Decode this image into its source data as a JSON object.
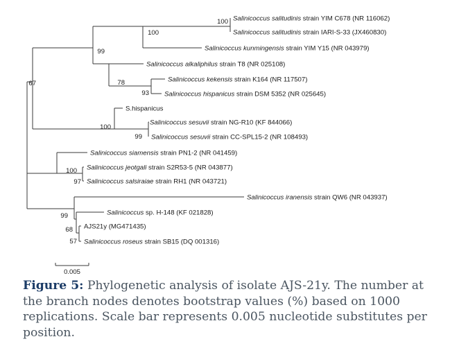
{
  "tree": {
    "leaves": [
      {
        "id": "L1",
        "italic": "Salinicoccus salitudinis",
        "rest": " strain YIM C678 (NR 116062)"
      },
      {
        "id": "L2",
        "italic": "Salinicoccus salitudinis",
        "rest": " strain IARI-S-33 (JX460830)"
      },
      {
        "id": "L3",
        "italic": "Salinicoccus kunmingensis",
        "rest": " strain YIM Y15 (NR 043979)"
      },
      {
        "id": "L4",
        "italic": "Salinicoccus alkaliphilus",
        "rest": " strain T8 (NR 025108)"
      },
      {
        "id": "L5",
        "italic": "Salinicoccus kekensis",
        "rest": " strain K164 (NR 117507)"
      },
      {
        "id": "L6",
        "italic": "Salinicoccus hispanicus",
        "rest": " strain DSM 5352  (NR 025645)"
      },
      {
        "id": "L7",
        "italic": "",
        "rest": "S.hispanicus"
      },
      {
        "id": "L8",
        "italic": "Salinicoccus sesuvii",
        "rest": " strain NG-R10 (KF 844066)"
      },
      {
        "id": "L9",
        "italic": "Salinicoccus sesuvii",
        "rest": " strain CC-SPL15-2 (NR 108493)"
      },
      {
        "id": "L10",
        "italic": "Salinicoccus siamensis",
        "rest": " strain PN1-2 (NR 041459)"
      },
      {
        "id": "L11",
        "italic": "Salinicoccus jeotgali",
        "rest": " strain S2R53-5 (NR 043877)"
      },
      {
        "id": "L12",
        "italic": "Salinicoccus salsiraiae",
        "rest": " strain RH1 (NR 043721)"
      },
      {
        "id": "L13",
        "italic": "Salinicoccus iranensis",
        "rest": " strain QW6 (NR 043937)"
      },
      {
        "id": "L14",
        "italic": "Salinicoccus",
        "rest": " sp. H-148 (KF 021828)"
      },
      {
        "id": "L15",
        "italic": "",
        "rest": "AJS21y (MG471435)"
      },
      {
        "id": "L16",
        "italic": "Salinicoccus roseus",
        "rest": " strain SB15 (DQ 001316)"
      }
    ],
    "bootstrap": {
      "b_sal": "100",
      "b_salk": "100",
      "b_cladeA": "99",
      "b_top": "67",
      "b_alk": "78",
      "b_kek": "93",
      "b_ses": "100",
      "b_ses2": "99",
      "b_jeo": "100",
      "b_jeo2": "97",
      "b_bottom": "99",
      "b_aj": "68",
      "b_ros": "57"
    },
    "scale_label": "0.005"
  },
  "caption": {
    "label": "Figure 5:",
    "text": " Phylogenetic analysis of isolate AJS-21y. The number at the branch nodes denotes bootstrap values (%) based on 1000 replications. Scale bar represents 0.005 nucleotide substitutes per position."
  }
}
